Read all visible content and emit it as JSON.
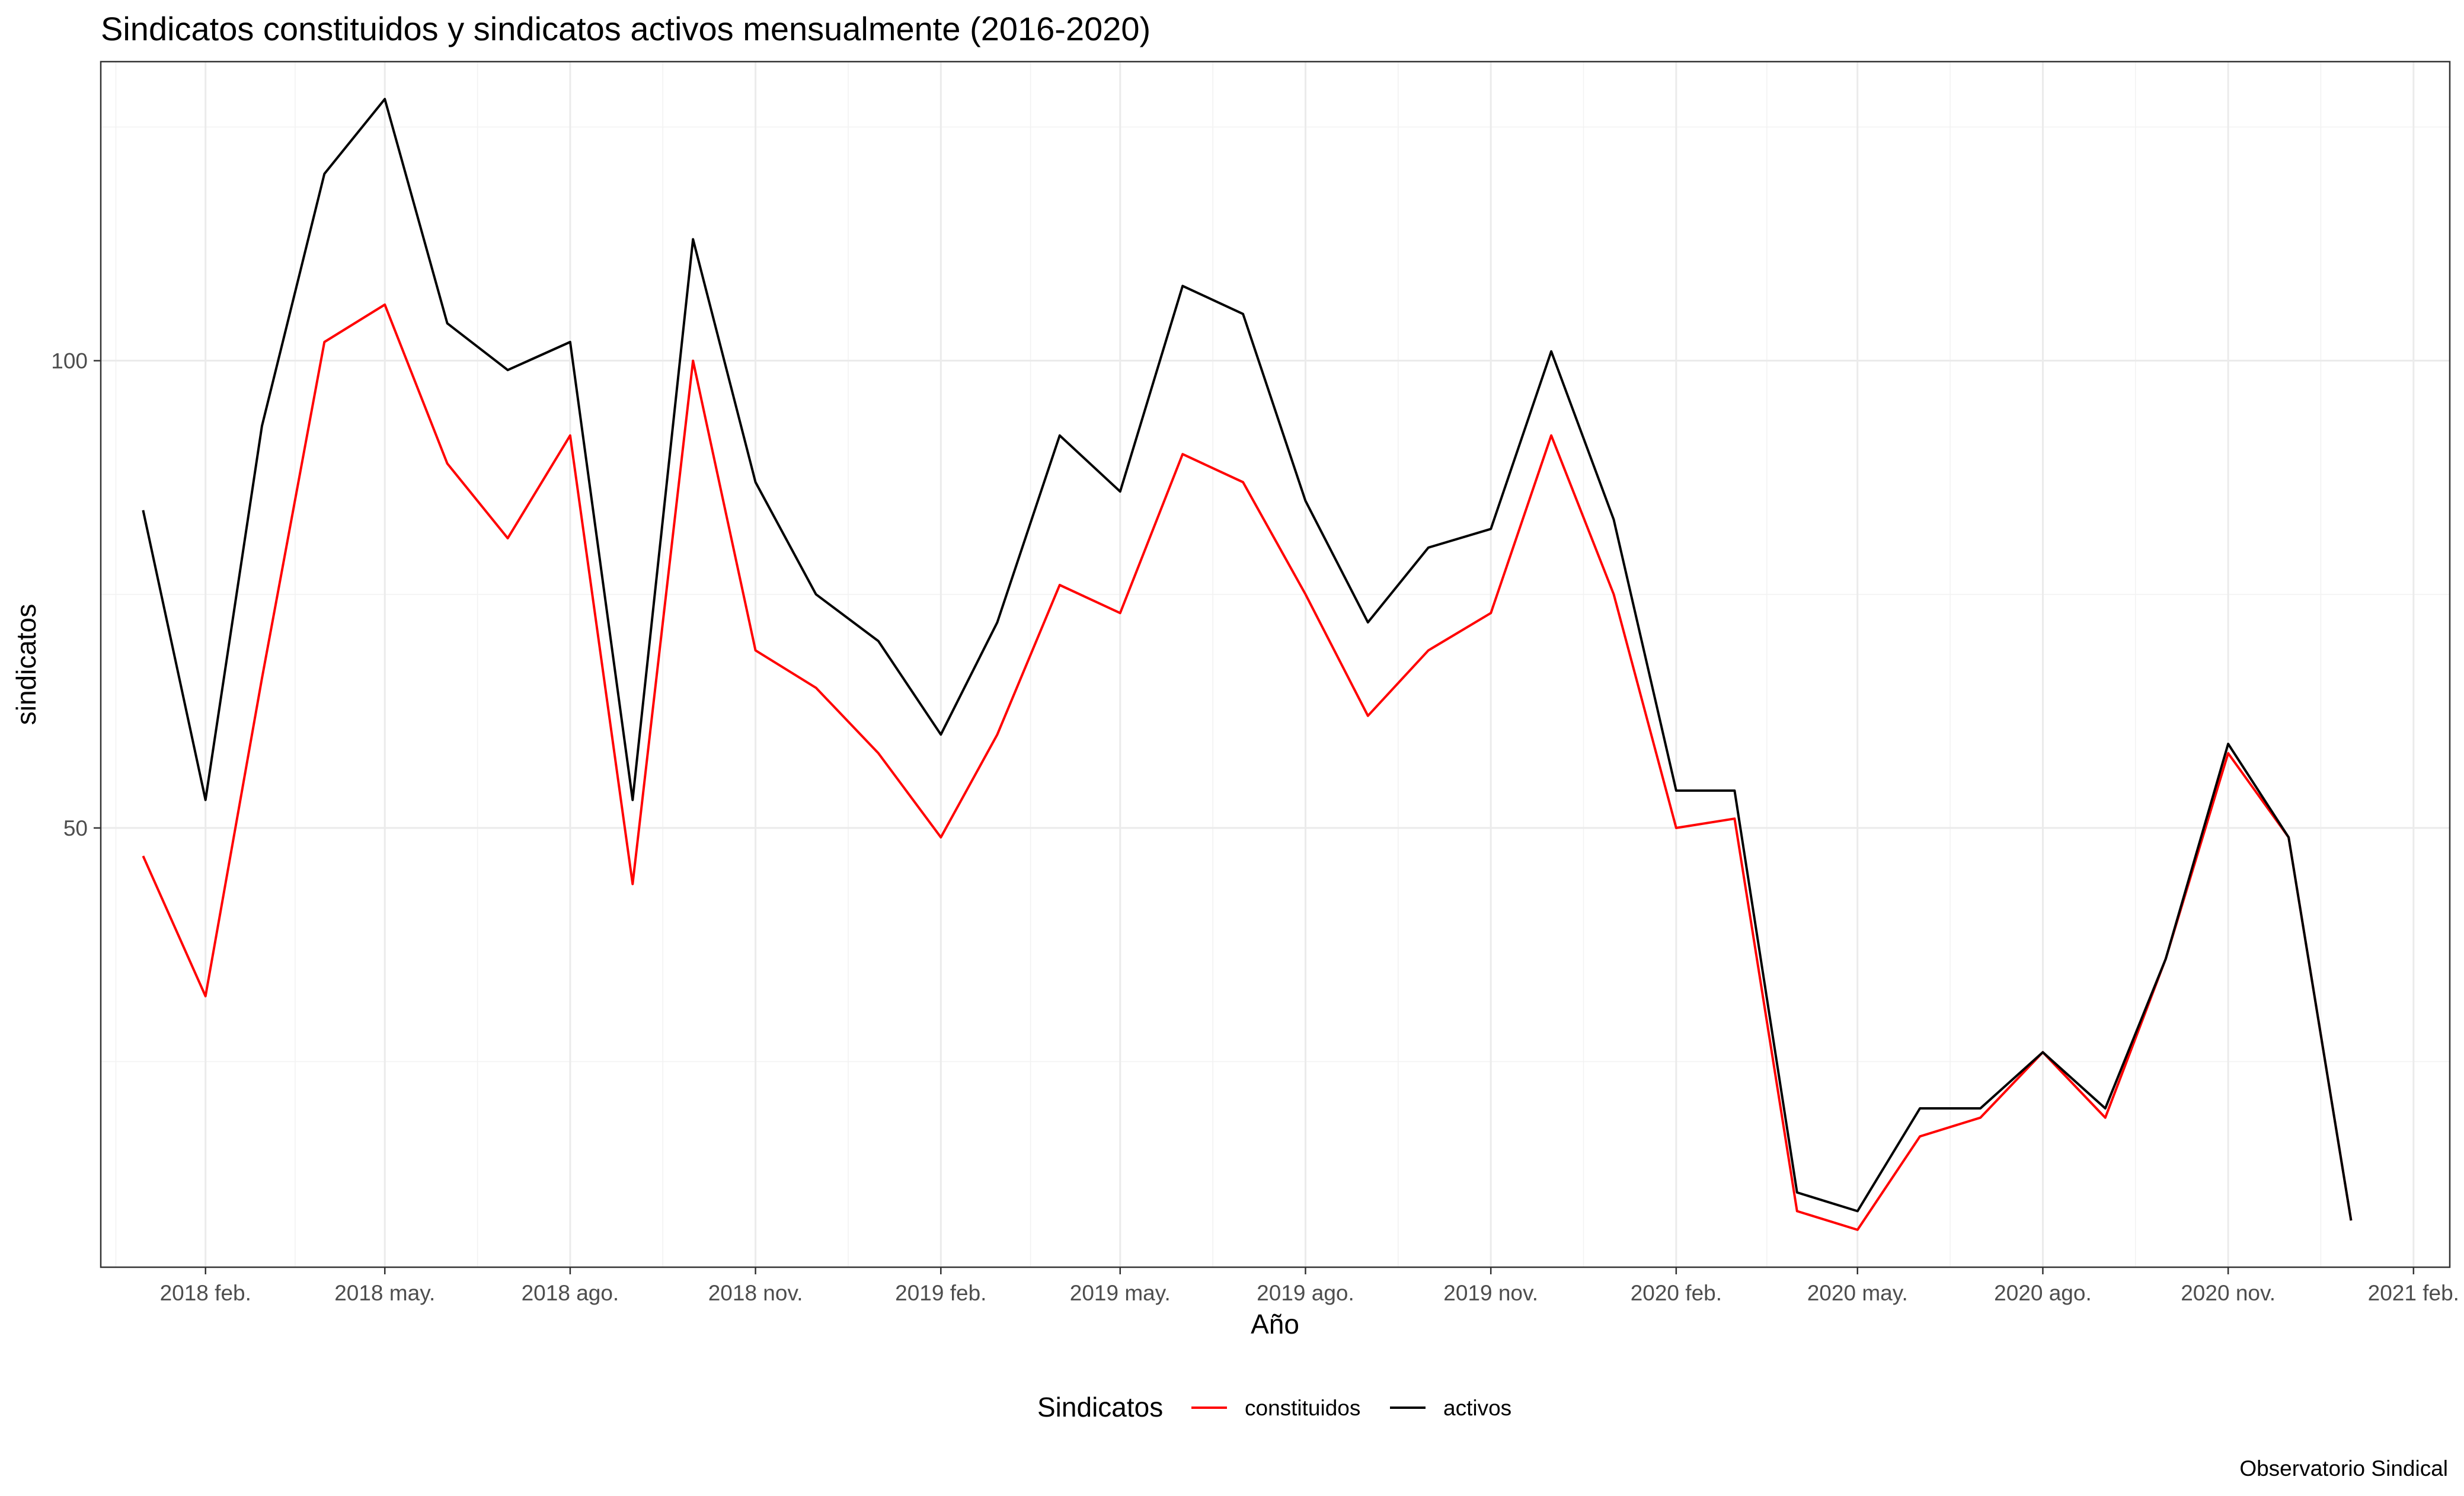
{
  "chart_data": {
    "type": "line",
    "title": "Sindicatos constituidos y sindicatos activos mensualmente (2016-2020)",
    "xlabel": "Año",
    "ylabel": "sindicatos",
    "caption": "Observatorio Sindical",
    "legend_title": "Sindicatos",
    "legend_position": "bottom",
    "grid": true,
    "ylim": [
      3,
      132
    ],
    "xlim": [
      "2017-12-11",
      "2021-02-19"
    ],
    "y_ticks": [
      50,
      100
    ],
    "x_ticks": [
      {
        "date": "2018-02-01",
        "label": "2018 feb."
      },
      {
        "date": "2018-05-01",
        "label": "2018 may."
      },
      {
        "date": "2018-08-01",
        "label": "2018 ago."
      },
      {
        "date": "2018-11-01",
        "label": "2018 nov."
      },
      {
        "date": "2019-02-01",
        "label": "2019 feb."
      },
      {
        "date": "2019-05-01",
        "label": "2019 may."
      },
      {
        "date": "2019-08-01",
        "label": "2019 ago."
      },
      {
        "date": "2019-11-01",
        "label": "2019 nov."
      },
      {
        "date": "2020-02-01",
        "label": "2020 feb."
      },
      {
        "date": "2020-05-01",
        "label": "2020 may."
      },
      {
        "date": "2020-08-01",
        "label": "2020 ago."
      },
      {
        "date": "2020-11-01",
        "label": "2020 nov."
      },
      {
        "date": "2021-02-01",
        "label": "2021 feb."
      }
    ],
    "x": [
      "2018-01-01",
      "2018-02-01",
      "2018-03-01",
      "2018-04-01",
      "2018-05-01",
      "2018-06-01",
      "2018-07-01",
      "2018-08-01",
      "2018-09-01",
      "2018-10-01",
      "2018-11-01",
      "2018-12-01",
      "2019-01-01",
      "2019-02-01",
      "2019-03-01",
      "2019-04-01",
      "2019-05-01",
      "2019-06-01",
      "2019-07-01",
      "2019-08-01",
      "2019-09-01",
      "2019-10-01",
      "2019-11-01",
      "2019-12-01",
      "2020-01-01",
      "2020-02-01",
      "2020-03-01",
      "2020-04-01",
      "2020-05-01",
      "2020-06-01",
      "2020-07-01",
      "2020-08-01",
      "2020-09-01",
      "2020-10-01",
      "2020-11-01",
      "2020-12-01",
      "2021-01-01"
    ],
    "series": [
      {
        "name": "constituidos",
        "color": "#ff0000",
        "values": [
          47,
          32,
          66,
          102,
          106,
          89,
          81,
          92,
          44,
          100,
          69,
          65,
          58,
          49,
          60,
          76,
          73,
          90,
          87,
          75,
          62,
          69,
          73,
          92,
          75,
          50,
          51,
          9,
          7,
          17,
          19,
          26,
          19,
          36,
          58,
          49,
          8
        ]
      },
      {
        "name": "activos",
        "color": "#000000",
        "values": [
          84,
          53,
          93,
          120,
          128,
          104,
          99,
          102,
          53,
          113,
          87,
          75,
          70,
          60,
          72,
          92,
          86,
          108,
          105,
          85,
          72,
          80,
          82,
          101,
          83,
          54,
          54,
          11,
          9,
          20,
          20,
          26,
          20,
          36,
          59,
          49,
          8
        ]
      }
    ]
  }
}
